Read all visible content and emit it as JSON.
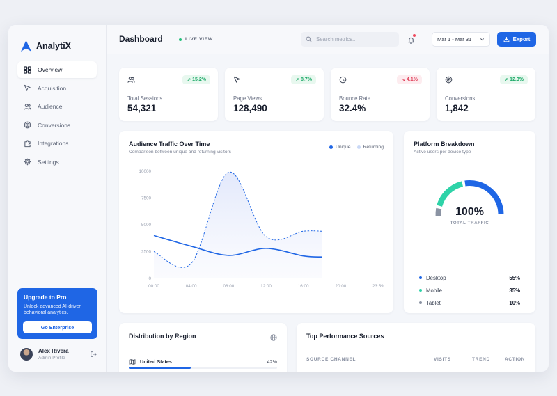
{
  "app": {
    "name": "AnalytiX"
  },
  "sidebar": {
    "items": [
      {
        "label": "Overview",
        "icon": "grid-icon"
      },
      {
        "label": "Acquisition",
        "icon": "cursor-icon"
      },
      {
        "label": "Audience",
        "icon": "users-icon"
      },
      {
        "label": "Conversions",
        "icon": "target-icon"
      },
      {
        "label": "Integrations",
        "icon": "puzzle-icon"
      },
      {
        "label": "Settings",
        "icon": "gear-icon"
      }
    ],
    "promo": {
      "title": "Upgrade to Pro",
      "text": "Unlock advanced AI-driven behavioral analytics.",
      "button": "Go Enterprise"
    },
    "user": {
      "name": "Alex Rivera",
      "role": "Admin Profile"
    }
  },
  "header": {
    "title": "Dashboard",
    "live": "LIVE VIEW",
    "search_placeholder": "Search metrics...",
    "date_range": "Mar 1 - Mar 31",
    "export_label": "Export"
  },
  "stats": [
    {
      "label": "Total Sessions",
      "value": "54,321",
      "trend": "15.2%",
      "dir": "up",
      "icon": "users-icon"
    },
    {
      "label": "Page Views",
      "value": "128,490",
      "trend": "8.7%",
      "dir": "up",
      "icon": "cursor-icon"
    },
    {
      "label": "Bounce Rate",
      "value": "32.4%",
      "trend": "4.1%",
      "dir": "down",
      "icon": "clock-icon"
    },
    {
      "label": "Conversions",
      "value": "1,842",
      "trend": "12.3%",
      "dir": "up",
      "icon": "target-icon"
    }
  ],
  "traffic": {
    "title": "Audience Traffic Over Time",
    "subtitle": "Comparison between unique and returning visitors",
    "legend": [
      "Unique",
      "Returning"
    ]
  },
  "platform": {
    "title": "Platform Breakdown",
    "subtitle": "Active users per device type",
    "total": "100%",
    "total_label": "TOTAL TRAFFIC",
    "rows": [
      {
        "label": "Desktop",
        "value": "55%",
        "color": "#1f66e5"
      },
      {
        "label": "Mobile",
        "value": "35%",
        "color": "#2ed3a8"
      },
      {
        "label": "Tablet",
        "value": "10%",
        "color": "#8b93a3"
      }
    ]
  },
  "region": {
    "title": "Distribution by Region",
    "rows": [
      {
        "label": "United States",
        "value": "42%",
        "share": 0.42
      }
    ]
  },
  "sources": {
    "title": "Top Performance Sources",
    "columns": [
      "SOURCE CHANNEL",
      "VISITS",
      "TREND",
      "ACTION"
    ]
  },
  "chart_data": {
    "type": "line",
    "x": [
      "00:00",
      "04:00",
      "08:00",
      "12:00",
      "16:00",
      "20:00",
      "23:59"
    ],
    "ylim": [
      0,
      10000
    ],
    "yticks": [
      "10000",
      "7500",
      "5000",
      "2500",
      "0"
    ],
    "series": [
      {
        "name": "Unique",
        "color": "#1f66e5",
        "style": "solid",
        "points": [
          [
            0,
            4000
          ],
          [
            4,
            3000
          ],
          [
            8,
            2150
          ],
          [
            12,
            2800
          ],
          [
            16,
            2100
          ],
          [
            18,
            2000
          ]
        ]
      },
      {
        "name": "Returning",
        "color": "#1f66e5",
        "style": "dashed",
        "points": [
          [
            0,
            2500
          ],
          [
            4,
            1400
          ],
          [
            8,
            9900
          ],
          [
            12,
            3900
          ],
          [
            16,
            4400
          ],
          [
            18,
            4400
          ]
        ]
      }
    ]
  },
  "platform_chart": {
    "type": "pie",
    "categories": [
      "Desktop",
      "Mobile",
      "Tablet"
    ],
    "values": [
      55,
      35,
      10
    ]
  }
}
